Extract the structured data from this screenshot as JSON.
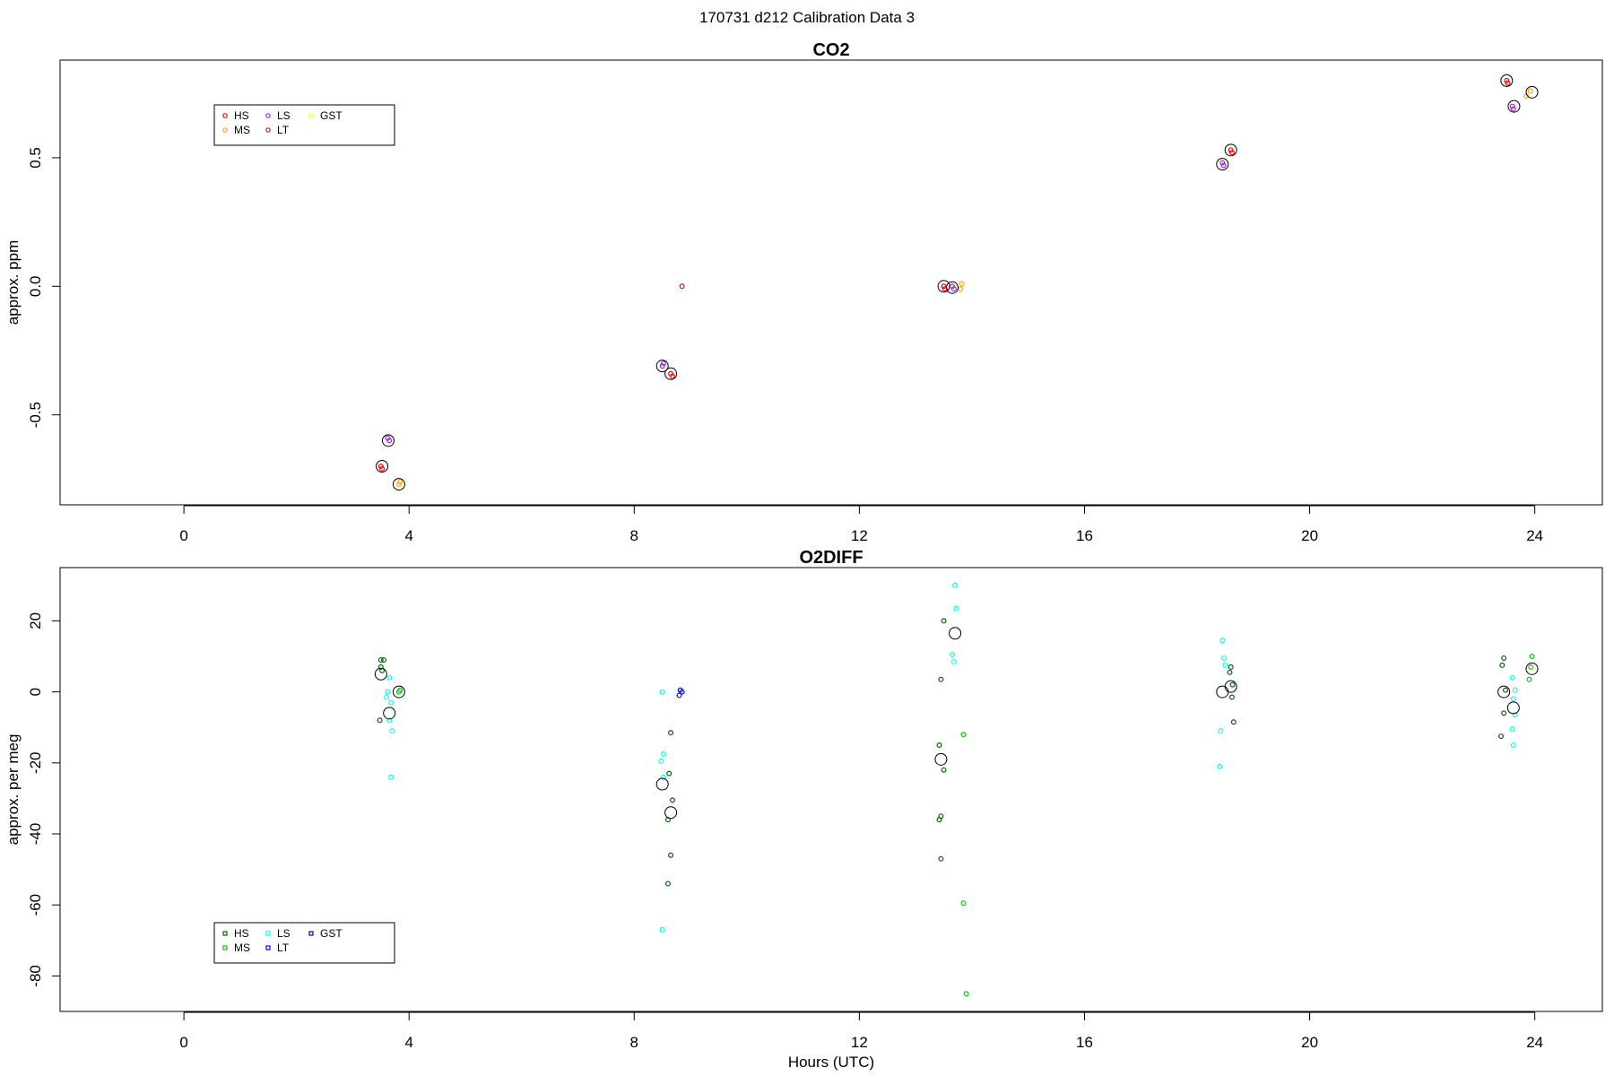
{
  "page_title": "170731   d212   Calibration Data 3",
  "chart_data": [
    {
      "type": "scatter",
      "title": "CO2",
      "xlabel": "",
      "ylabel": "approx. ppm",
      "xlim": [
        -2.2,
        25.2
      ],
      "ylim": [
        -0.85,
        0.88
      ],
      "xticks": [
        0,
        4,
        8,
        12,
        16,
        20,
        24
      ],
      "xtick_labels": [
        "0",
        "4",
        "8",
        "12",
        "16",
        "20",
        "24"
      ],
      "yticks": [
        -0.5,
        0.0,
        0.5
      ],
      "ytick_labels": [
        "-0.5",
        "0.0",
        "0.5"
      ],
      "legend": {
        "placement": "top-left",
        "entries": [
          {
            "label": "HS",
            "color": "#ff0000"
          },
          {
            "label": "MS",
            "color": "#ffa500"
          },
          {
            "label": "LS",
            "color": "#a020f0"
          },
          {
            "label": "LT",
            "color": "#b22222"
          },
          {
            "label": "GST",
            "color": "#ffff00"
          }
        ]
      },
      "series": [
        {
          "name": "HS",
          "color": "#ff0000",
          "points": [
            [
              3.5,
              -0.7
            ],
            [
              3.52,
              -0.71
            ],
            [
              8.65,
              -0.34
            ],
            [
              8.68,
              -0.35
            ],
            [
              13.5,
              0.0
            ],
            [
              13.52,
              -0.01
            ],
            [
              18.6,
              0.53
            ],
            [
              18.62,
              0.52
            ],
            [
              23.5,
              0.8
            ],
            [
              23.52,
              0.79
            ]
          ]
        },
        {
          "name": "MS",
          "color": "#ffa500",
          "points": [
            [
              3.82,
              -0.77
            ],
            [
              3.84,
              -0.76
            ],
            [
              13.8,
              -0.01
            ],
            [
              13.82,
              0.01
            ],
            [
              23.92,
              0.76
            ],
            [
              23.85,
              0.74
            ]
          ]
        },
        {
          "name": "LS",
          "color": "#a020f0",
          "points": [
            [
              3.65,
              -0.6
            ],
            [
              3.62,
              -0.59
            ],
            [
              8.5,
              -0.31
            ],
            [
              8.52,
              -0.3
            ],
            [
              13.65,
              0.0
            ],
            [
              13.68,
              -0.01
            ],
            [
              18.45,
              0.48
            ],
            [
              18.47,
              0.47
            ],
            [
              23.6,
              0.7
            ],
            [
              23.62,
              0.69
            ]
          ]
        },
        {
          "name": "LT",
          "color": "#b22222",
          "points": [
            [
              8.85,
              0.0
            ]
          ]
        },
        {
          "name": "GST",
          "color": "#ffd700",
          "points": []
        }
      ],
      "means": [
        [
          3.52,
          -0.7
        ],
        [
          3.63,
          -0.6
        ],
        [
          3.82,
          -0.77
        ],
        [
          8.5,
          -0.31
        ],
        [
          8.65,
          -0.34
        ],
        [
          13.5,
          0.0
        ],
        [
          13.65,
          -0.005
        ],
        [
          18.45,
          0.475
        ],
        [
          18.6,
          0.53
        ],
        [
          23.5,
          0.8
        ],
        [
          23.63,
          0.7
        ],
        [
          23.95,
          0.755
        ]
      ]
    },
    {
      "type": "scatter",
      "title": "O2DIFF",
      "xlabel": "Hours (UTC)",
      "ylabel": "approx. per meg",
      "xlim": [
        -2.2,
        25.2
      ],
      "ylim": [
        -90,
        35
      ],
      "xticks": [
        0,
        4,
        8,
        12,
        16,
        20,
        24
      ],
      "xtick_labels": [
        "0",
        "4",
        "8",
        "12",
        "16",
        "20",
        "24"
      ],
      "yticks": [
        -80,
        -60,
        -40,
        -20,
        0,
        20
      ],
      "ytick_labels": [
        "-80",
        "-60",
        "-40",
        "-20",
        "0",
        "20"
      ],
      "legend": {
        "placement": "bottom-left",
        "entries": [
          {
            "label": "HS",
            "color": "#006400"
          },
          {
            "label": "MS",
            "color": "#00cd00"
          },
          {
            "label": "LS",
            "color": "#00ffff"
          },
          {
            "label": "LT",
            "color": "#0000ff"
          },
          {
            "label": "GST",
            "color": "#00008b"
          }
        ]
      },
      "series": [
        {
          "name": "HS",
          "color": "#006400",
          "points": [
            [
              3.5,
              9
            ],
            [
              3.55,
              9
            ],
            [
              3.5,
              7
            ],
            [
              3.52,
              6
            ],
            [
              3.48,
              -8
            ],
            [
              8.65,
              -11.5
            ],
            [
              8.62,
              -23
            ],
            [
              8.68,
              -30.5
            ],
            [
              8.6,
              -36
            ],
            [
              8.65,
              -46
            ],
            [
              8.6,
              -54
            ],
            [
              13.5,
              20
            ],
            [
              13.45,
              3.5
            ],
            [
              13.42,
              -15
            ],
            [
              13.5,
              -22
            ],
            [
              13.45,
              -35
            ],
            [
              13.42,
              -36
            ],
            [
              13.45,
              -47
            ],
            [
              18.6,
              7
            ],
            [
              18.58,
              5.5
            ],
            [
              18.63,
              2
            ],
            [
              18.62,
              -1.5
            ],
            [
              18.65,
              -8.5
            ],
            [
              23.45,
              9.5
            ],
            [
              23.42,
              7.5
            ],
            [
              23.48,
              0.5
            ],
            [
              23.45,
              -6
            ],
            [
              23.4,
              -12.5
            ]
          ]
        },
        {
          "name": "MS",
          "color": "#00cd00",
          "points": [
            [
              3.82,
              0
            ],
            [
              3.84,
              0.5
            ],
            [
              13.85,
              -12
            ],
            [
              13.85,
              -59.5
            ],
            [
              13.9,
              -85
            ],
            [
              23.95,
              10
            ],
            [
              23.9,
              3.5
            ],
            [
              23.93,
              7
            ]
          ]
        },
        {
          "name": "LS",
          "color": "#00ffff",
          "points": [
            [
              3.65,
              4
            ],
            [
              3.62,
              0
            ],
            [
              3.6,
              -1.5
            ],
            [
              3.68,
              -3
            ],
            [
              3.65,
              -8
            ],
            [
              3.7,
              -11
            ],
            [
              3.68,
              -24
            ],
            [
              8.5,
              0
            ],
            [
              8.52,
              -17.5
            ],
            [
              8.48,
              -19.5
            ],
            [
              8.52,
              -24
            ],
            [
              8.5,
              -67
            ],
            [
              13.7,
              30
            ],
            [
              13.72,
              23.5
            ],
            [
              13.65,
              10.5
            ],
            [
              13.68,
              8.5
            ],
            [
              18.45,
              14.5
            ],
            [
              18.48,
              9.5
            ],
            [
              18.5,
              7.5
            ],
            [
              18.42,
              -11
            ],
            [
              18.4,
              -21
            ],
            [
              23.6,
              4
            ],
            [
              23.65,
              0.5
            ],
            [
              23.62,
              -2
            ],
            [
              23.65,
              -6.5
            ],
            [
              23.6,
              -10.5
            ],
            [
              23.62,
              -15
            ]
          ]
        },
        {
          "name": "LT",
          "color": "#0000ff",
          "points": [
            [
              8.82,
              0.5
            ],
            [
              8.85,
              0
            ],
            [
              8.8,
              -1
            ]
          ]
        },
        {
          "name": "GST",
          "color": "#00008b",
          "points": []
        }
      ],
      "means": [
        [
          3.5,
          5
        ],
        [
          3.65,
          -6
        ],
        [
          3.82,
          0
        ],
        [
          8.5,
          -26
        ],
        [
          8.65,
          -34
        ],
        [
          13.45,
          -19
        ],
        [
          13.7,
          16.5
        ],
        [
          18.45,
          0
        ],
        [
          18.6,
          1.5
        ],
        [
          23.45,
          0
        ],
        [
          23.62,
          -4.5
        ],
        [
          23.95,
          6.5
        ]
      ]
    }
  ]
}
